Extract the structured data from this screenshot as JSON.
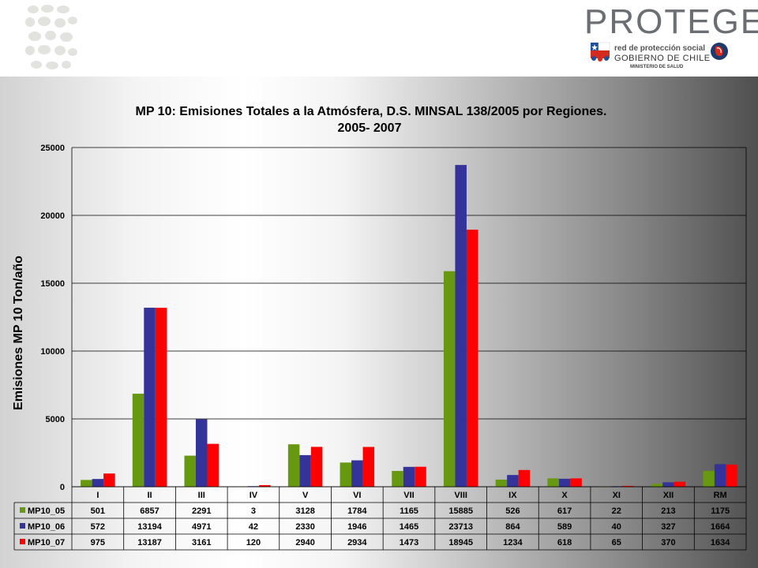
{
  "header": {
    "brand_title": "PROTEGE",
    "brand_line1": "red de protección social",
    "brand_line2": "GOBIERNO DE CHILE",
    "brand_line3": "MINISTERIO DE SALUD"
  },
  "colors": {
    "MP10_05": "#66990f",
    "MP10_06": "#333399",
    "MP10_07": "#ff0000"
  },
  "chart_data": {
    "type": "bar",
    "title_line1": "MP 10: Emisiones Totales a la Atmósfera,  D.S. MINSAL 138/2005  por Regiones.",
    "title_line2": "2005- 2007",
    "ylabel": "Emisiones MP 10 Ton/año",
    "xlabel": "",
    "ylim": [
      0,
      25000
    ],
    "yticks": [
      "0",
      "5000",
      "10000",
      "15000",
      "20000",
      "25000"
    ],
    "grid": true,
    "legend": "data-table",
    "categories": [
      "I",
      "II",
      "III",
      "IV",
      "V",
      "VI",
      "VII",
      "VIII",
      "IX",
      "X",
      "XI",
      "XII",
      "RM"
    ],
    "series": [
      {
        "name": "MP10_05",
        "values": [
          501,
          6857,
          2291,
          3,
          3128,
          1784,
          1165,
          15885,
          526,
          617,
          22,
          213,
          1175
        ]
      },
      {
        "name": "MP10_06",
        "values": [
          572,
          13194,
          4971,
          42,
          2330,
          1946,
          1465,
          23713,
          864,
          589,
          40,
          327,
          1664
        ]
      },
      {
        "name": "MP10_07",
        "values": [
          975,
          13187,
          3161,
          120,
          2940,
          2934,
          1473,
          18945,
          1234,
          618,
          65,
          370,
          1634
        ]
      }
    ]
  }
}
